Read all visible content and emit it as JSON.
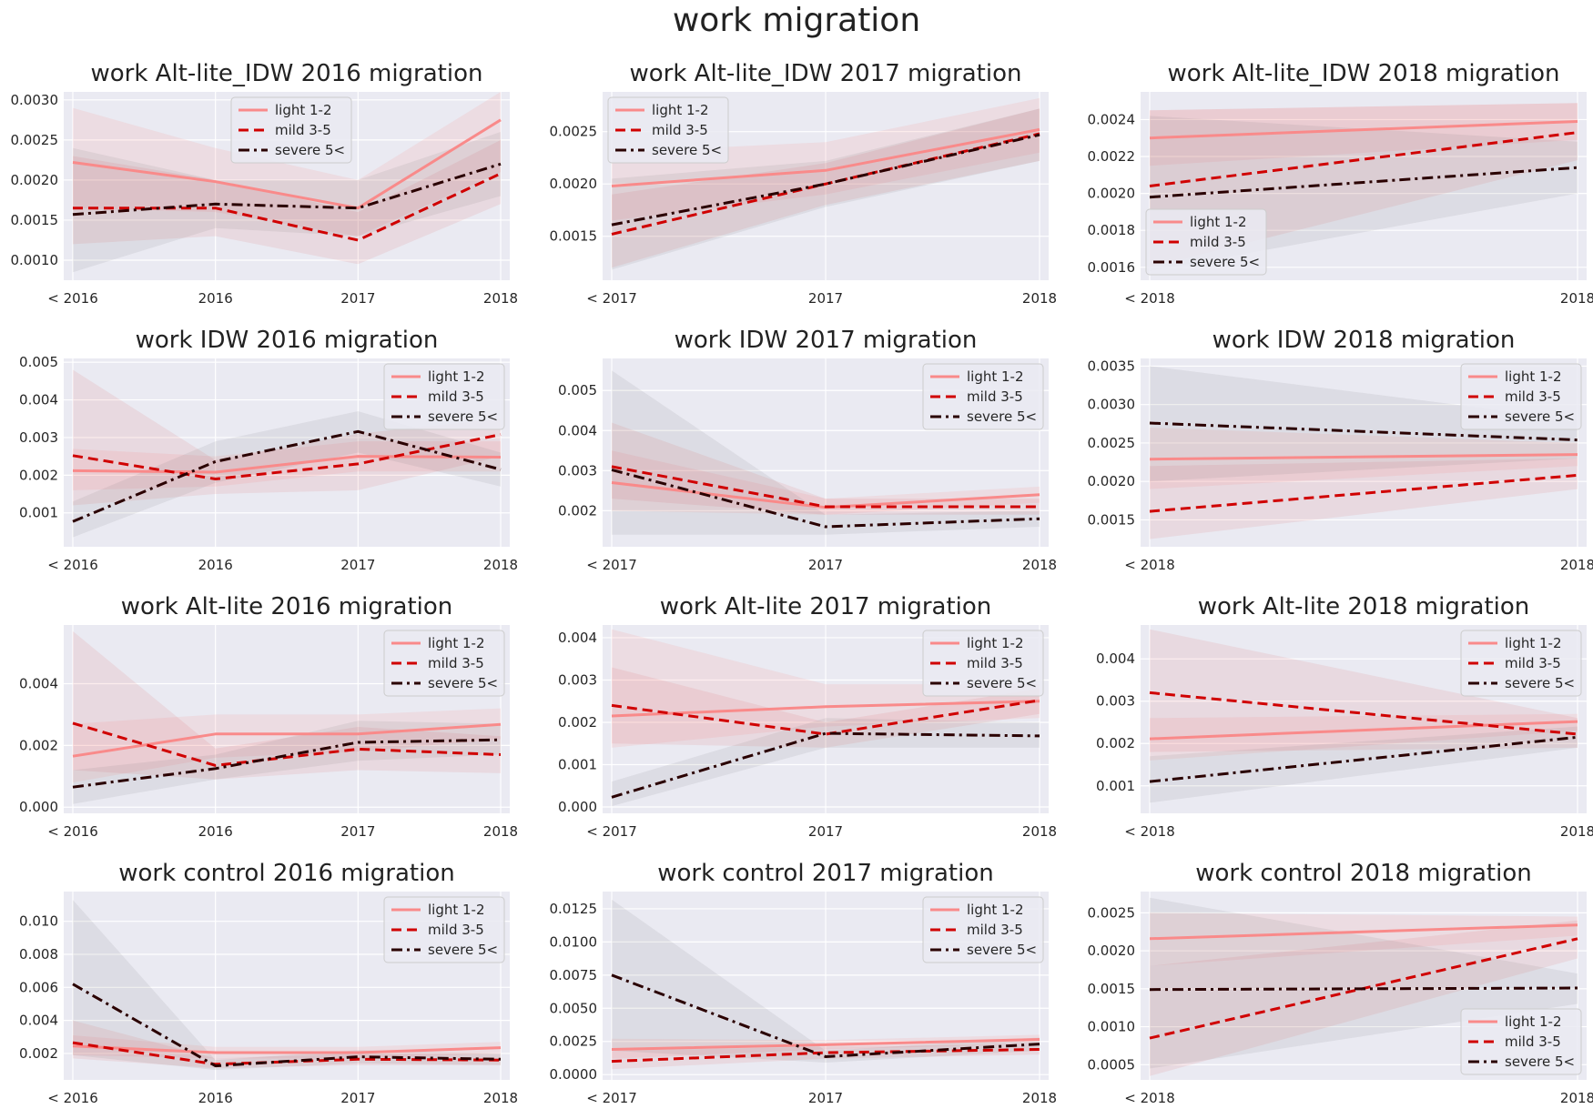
{
  "suptitle": "work migration",
  "legend_labels": [
    "light 1-2",
    "mild 3-5",
    "severe 5<"
  ],
  "colors": {
    "light": "#f98a8a",
    "mild": "#d00000",
    "severe": "#2a0000",
    "panel_bg": "#eaeaf2",
    "grid": "#ffffff"
  },
  "chart_data": [
    {
      "type": "line",
      "title": "work Alt-lite_IDW 2016 migration",
      "x": [
        "< 2016",
        "2016",
        "2017",
        "2018"
      ],
      "ylim": [
        0.00075,
        0.0031
      ],
      "yticks": [
        "0.0010",
        "0.0015",
        "0.0020",
        "0.0025",
        "0.0030"
      ],
      "legend": "upper-center",
      "series": [
        {
          "name": "light 1-2",
          "values": [
            0.00222,
            0.00198,
            0.00165,
            0.00275
          ],
          "lower": [
            0.00165,
            0.0016,
            0.0013,
            0.0021
          ],
          "upper": [
            0.0029,
            0.0024,
            0.002,
            0.0031
          ]
        },
        {
          "name": "mild 3-5",
          "values": [
            0.00165,
            0.00165,
            0.00125,
            0.00208
          ],
          "lower": [
            0.0012,
            0.0013,
            0.00095,
            0.0017
          ],
          "upper": [
            0.0023,
            0.002,
            0.0016,
            0.0025
          ]
        },
        {
          "name": "severe 5<",
          "values": [
            0.00157,
            0.0017,
            0.00165,
            0.0022
          ],
          "lower": [
            0.00085,
            0.0014,
            0.0013,
            0.0018
          ],
          "upper": [
            0.0024,
            0.002,
            0.002,
            0.0026
          ]
        }
      ]
    },
    {
      "type": "line",
      "title": "work Alt-lite_IDW 2017 migration",
      "x": [
        "< 2017",
        "2017",
        "2018"
      ],
      "ylim": [
        0.00108,
        0.00288
      ],
      "yticks": [
        "0.0015",
        "0.0020",
        "0.0025"
      ],
      "legend": "upper-left",
      "series": [
        {
          "name": "light 1-2",
          "values": [
            0.00198,
            0.00213,
            0.00252
          ],
          "lower": [
            0.00165,
            0.0019,
            0.0023
          ],
          "upper": [
            0.0023,
            0.0024,
            0.00282
          ]
        },
        {
          "name": "mild 3-5",
          "values": [
            0.00152,
            0.002,
            0.00248
          ],
          "lower": [
            0.0012,
            0.0018,
            0.00222
          ],
          "upper": [
            0.0019,
            0.0022,
            0.00272
          ]
        },
        {
          "name": "severe 5<",
          "values": [
            0.00161,
            0.002,
            0.00247
          ],
          "lower": [
            0.00118,
            0.00178,
            0.00222
          ],
          "upper": [
            0.00205,
            0.00222,
            0.00272
          ]
        }
      ]
    },
    {
      "type": "line",
      "title": "work Alt-lite_IDW 2018 migration",
      "x": [
        "< 2018",
        "2018"
      ],
      "ylim": [
        0.00153,
        0.00255
      ],
      "yticks": [
        "0.0016",
        "0.0018",
        "0.0020",
        "0.0022",
        "0.0024"
      ],
      "legend": "lower-left",
      "series": [
        {
          "name": "light 1-2",
          "values": [
            0.0023,
            0.00239
          ],
          "lower": [
            0.00215,
            0.00229
          ],
          "upper": [
            0.00245,
            0.00249
          ]
        },
        {
          "name": "mild 3-5",
          "values": [
            0.00204,
            0.00233
          ],
          "lower": [
            0.0016,
            0.00218
          ],
          "upper": [
            0.00245,
            0.00249
          ]
        },
        {
          "name": "severe 5<",
          "values": [
            0.00198,
            0.00214
          ],
          "lower": [
            0.00158,
            0.002
          ],
          "upper": [
            0.00242,
            0.00228
          ]
        }
      ]
    },
    {
      "type": "line",
      "title": "work IDW 2016 migration",
      "x": [
        "< 2016",
        "2016",
        "2017",
        "2018"
      ],
      "ylim": [
        0.0001,
        0.0051
      ],
      "yticks": [
        "0.001",
        "0.002",
        "0.003",
        "0.004",
        "0.005"
      ],
      "legend": "upper-right",
      "series": [
        {
          "name": "light 1-2",
          "values": [
            0.00212,
            0.00208,
            0.0025,
            0.00248
          ],
          "lower": [
            0.0016,
            0.0017,
            0.0021,
            0.0021
          ],
          "upper": [
            0.0027,
            0.0025,
            0.0029,
            0.0029
          ]
        },
        {
          "name": "mild 3-5",
          "values": [
            0.00252,
            0.0019,
            0.0023,
            0.00308
          ],
          "lower": [
            0.0012,
            0.0015,
            0.0016,
            0.0025
          ],
          "upper": [
            0.0048,
            0.0024,
            0.0031,
            0.0035
          ]
        },
        {
          "name": "severe 5<",
          "values": [
            0.00077,
            0.00236,
            0.00316,
            0.00215
          ],
          "lower": [
            0.00035,
            0.0018,
            0.0026,
            0.0017
          ],
          "upper": [
            0.0013,
            0.0029,
            0.0037,
            0.0026
          ]
        }
      ]
    },
    {
      "type": "line",
      "title": "work IDW 2017 migration",
      "x": [
        "< 2017",
        "2017",
        "2018"
      ],
      "ylim": [
        0.0011,
        0.0058
      ],
      "yticks": [
        "0.002",
        "0.003",
        "0.004",
        "0.005"
      ],
      "legend": "upper-right",
      "series": [
        {
          "name": "light 1-2",
          "values": [
            0.0027,
            0.00208,
            0.0024
          ],
          "lower": [
            0.002,
            0.0019,
            0.0022
          ],
          "upper": [
            0.0035,
            0.0023,
            0.0026
          ]
        },
        {
          "name": "mild 3-5",
          "values": [
            0.0031,
            0.0021,
            0.0021
          ],
          "lower": [
            0.0023,
            0.0019,
            0.0019
          ],
          "upper": [
            0.0042,
            0.0023,
            0.0023
          ]
        },
        {
          "name": "severe 5<",
          "values": [
            0.00302,
            0.0016,
            0.0018
          ],
          "lower": [
            0.0014,
            0.0014,
            0.0016
          ],
          "upper": [
            0.0055,
            0.0019,
            0.002
          ]
        }
      ]
    },
    {
      "type": "line",
      "title": "work IDW 2018 migration",
      "x": [
        "< 2018",
        "2018"
      ],
      "ylim": [
        0.00115,
        0.0036
      ],
      "yticks": [
        "0.0015",
        "0.0020",
        "0.0025",
        "0.0030",
        "0.0035"
      ],
      "legend": "upper-right",
      "series": [
        {
          "name": "light 1-2",
          "values": [
            0.00229,
            0.00235
          ],
          "lower": [
            0.0019,
            0.0022
          ],
          "upper": [
            0.0027,
            0.0025
          ]
        },
        {
          "name": "mild 3-5",
          "values": [
            0.00161,
            0.00208
          ],
          "lower": [
            0.00125,
            0.0019
          ],
          "upper": [
            0.0022,
            0.0023
          ]
        },
        {
          "name": "severe 5<",
          "values": [
            0.00276,
            0.00254
          ],
          "lower": [
            0.002,
            0.0023
          ],
          "upper": [
            0.0035,
            0.0028
          ]
        }
      ]
    },
    {
      "type": "line",
      "title": "work Alt-lite 2016 migration",
      "x": [
        "< 2016",
        "2016",
        "2017",
        "2018"
      ],
      "ylim": [
        -0.0002,
        0.0059
      ],
      "yticks": [
        "0.000",
        "0.002",
        "0.004"
      ],
      "legend": "upper-right",
      "series": [
        {
          "name": "light 1-2",
          "values": [
            0.00165,
            0.00237,
            0.00237,
            0.00268
          ],
          "lower": [
            0.0008,
            0.0016,
            0.0018,
            0.0022
          ],
          "upper": [
            0.0027,
            0.003,
            0.003,
            0.0032
          ]
        },
        {
          "name": "mild 3-5",
          "values": [
            0.00272,
            0.00135,
            0.00188,
            0.0017
          ],
          "lower": [
            0.0012,
            0.0009,
            0.0012,
            0.0011
          ],
          "upper": [
            0.0057,
            0.0019,
            0.0026,
            0.0023
          ]
        },
        {
          "name": "severe 5<",
          "values": [
            0.00065,
            0.00125,
            0.0021,
            0.00218
          ],
          "lower": [
            0.0001,
            0.0009,
            0.0015,
            0.0017
          ],
          "upper": [
            0.0012,
            0.0017,
            0.0028,
            0.0027
          ]
        }
      ]
    },
    {
      "type": "line",
      "title": "work Alt-lite 2017 migration",
      "x": [
        "< 2017",
        "2017",
        "2018"
      ],
      "ylim": [
        -0.00015,
        0.0043
      ],
      "yticks": [
        "0.000",
        "0.001",
        "0.002",
        "0.003",
        "0.004"
      ],
      "legend": "upper-right",
      "series": [
        {
          "name": "light 1-2",
          "values": [
            0.00215,
            0.00237,
            0.0025
          ],
          "lower": [
            0.0014,
            0.0019,
            0.0021
          ],
          "upper": [
            0.0042,
            0.0029,
            0.0029
          ]
        },
        {
          "name": "mild 3-5",
          "values": [
            0.0024,
            0.00172,
            0.00252
          ],
          "lower": [
            0.0015,
            0.0014,
            0.0022
          ],
          "upper": [
            0.0033,
            0.002,
            0.0028
          ]
        },
        {
          "name": "severe 5<",
          "values": [
            0.00023,
            0.00174,
            0.00168
          ],
          "lower": [
            2e-05,
            0.0014,
            0.0014
          ],
          "upper": [
            0.0006,
            0.0021,
            0.002
          ]
        }
      ]
    },
    {
      "type": "line",
      "title": "work Alt-lite 2018 migration",
      "x": [
        "< 2018",
        "2018"
      ],
      "ylim": [
        0.00035,
        0.0048
      ],
      "yticks": [
        "0.001",
        "0.002",
        "0.003",
        "0.004"
      ],
      "legend": "upper-right",
      "series": [
        {
          "name": "light 1-2",
          "values": [
            0.00211,
            0.00252
          ],
          "lower": [
            0.0016,
            0.0023
          ],
          "upper": [
            0.0026,
            0.0027
          ]
        },
        {
          "name": "mild 3-5",
          "values": [
            0.0032,
            0.00222
          ],
          "lower": [
            0.0018,
            0.0019
          ],
          "upper": [
            0.0047,
            0.0026
          ]
        },
        {
          "name": "severe 5<",
          "values": [
            0.0011,
            0.00215
          ],
          "lower": [
            0.0006,
            0.0019
          ],
          "upper": [
            0.0017,
            0.0024
          ]
        }
      ]
    },
    {
      "type": "line",
      "title": "work control 2016 migration",
      "x": [
        "< 2016",
        "2016",
        "2017",
        "2018"
      ],
      "ylim": [
        0.0004,
        0.0118
      ],
      "yticks": [
        "0.002",
        "0.004",
        "0.006",
        "0.008",
        "0.010"
      ],
      "legend": "upper-right",
      "series": [
        {
          "name": "light 1-2",
          "values": [
            0.00245,
            0.00205,
            0.00205,
            0.00235
          ],
          "lower": [
            0.0019,
            0.0017,
            0.0017,
            0.002
          ],
          "upper": [
            0.0031,
            0.0024,
            0.0024,
            0.0027
          ]
        },
        {
          "name": "mild 3-5",
          "values": [
            0.00265,
            0.00135,
            0.00165,
            0.0016
          ],
          "lower": [
            0.0017,
            0.0011,
            0.0013,
            0.0013
          ],
          "upper": [
            0.004,
            0.0017,
            0.002,
            0.002
          ]
        },
        {
          "name": "severe 5<",
          "values": [
            0.0062,
            0.00125,
            0.0018,
            0.00165
          ],
          "lower": [
            0.0019,
            0.001,
            0.0014,
            0.0013
          ],
          "upper": [
            0.0113,
            0.0016,
            0.0022,
            0.002
          ]
        }
      ]
    },
    {
      "type": "line",
      "title": "work control 2017 migration",
      "x": [
        "< 2017",
        "2017",
        "2018"
      ],
      "ylim": [
        -0.0004,
        0.0138
      ],
      "yticks": [
        "0.0000",
        "0.0025",
        "0.0050",
        "0.0075",
        "0.0100",
        "0.0125"
      ],
      "legend": "upper-right",
      "series": [
        {
          "name": "light 1-2",
          "values": [
            0.0019,
            0.00225,
            0.00265
          ],
          "lower": [
            0.0012,
            0.0019,
            0.0023
          ],
          "upper": [
            0.0027,
            0.0026,
            0.003
          ]
        },
        {
          "name": "mild 3-5",
          "values": [
            0.001,
            0.00165,
            0.0019
          ],
          "lower": [
            0.0004,
            0.0012,
            0.0015
          ],
          "upper": [
            0.0018,
            0.0021,
            0.0023
          ]
        },
        {
          "name": "severe 5<",
          "values": [
            0.0075,
            0.00135,
            0.0023
          ],
          "lower": [
            0.0018,
            0.0009,
            0.0018
          ],
          "upper": [
            0.0132,
            0.0018,
            0.0028
          ]
        }
      ]
    },
    {
      "type": "line",
      "title": "work control 2018 migration",
      "x": [
        "< 2018",
        "2018"
      ],
      "ylim": [
        0.0003,
        0.00278
      ],
      "yticks": [
        "0.0005",
        "0.0010",
        "0.0015",
        "0.0020",
        "0.0025"
      ],
      "legend": "lower-right",
      "series": [
        {
          "name": "light 1-2",
          "values": [
            0.00216,
            0.00234
          ],
          "lower": [
            0.0018,
            0.0022
          ],
          "upper": [
            0.0025,
            0.00245
          ]
        },
        {
          "name": "mild 3-5",
          "values": [
            0.00085,
            0.00216
          ],
          "lower": [
            0.00035,
            0.0019
          ],
          "upper": [
            0.0018,
            0.0024
          ]
        },
        {
          "name": "severe 5<",
          "values": [
            0.00149,
            0.00151
          ],
          "lower": [
            0.00045,
            0.0013
          ],
          "upper": [
            0.0027,
            0.0017
          ]
        }
      ]
    }
  ]
}
